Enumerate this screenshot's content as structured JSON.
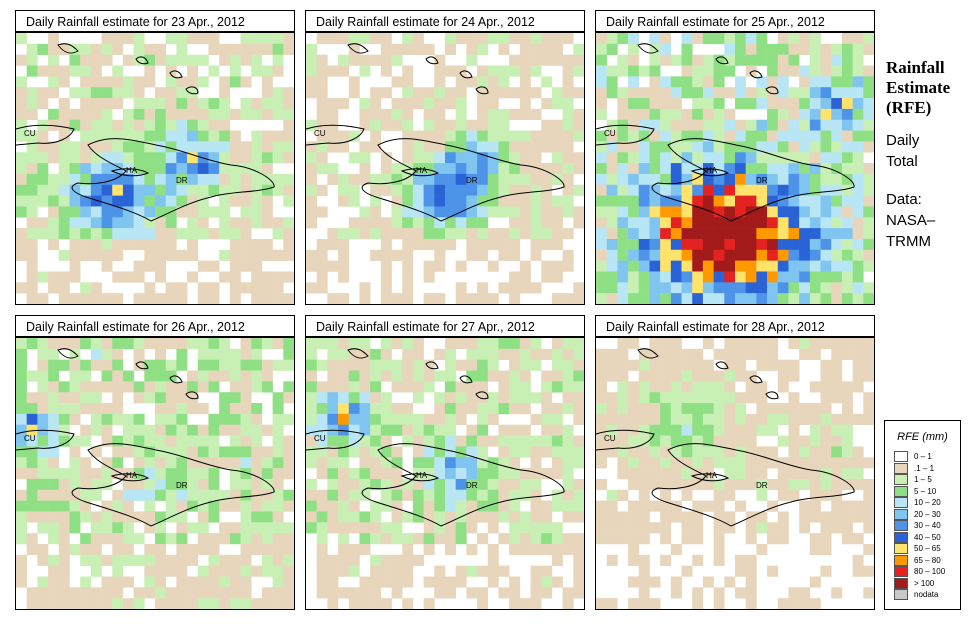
{
  "panels": [
    {
      "title": "Daily Rainfall estimate for  23 Apr., 2012"
    },
    {
      "title": "Daily Rainfall estimate for  24 Apr., 2012"
    },
    {
      "title": "Daily Rainfall estimate for  25 Apr., 2012"
    },
    {
      "title": "Daily Rainfall estimate for  26 Apr., 2012"
    },
    {
      "title": "Daily Rainfall estimate for  27 Apr., 2012"
    },
    {
      "title": "Daily Rainfall estimate for  28 Apr., 2012"
    }
  ],
  "map_labels": {
    "cuba": "CU",
    "haiti": "HA",
    "dominican_republic": "DR"
  },
  "sidebar": {
    "title_line1": "Rainfall",
    "title_line2": "Estimate",
    "title_line3": "(RFE)",
    "total_line1": "Daily",
    "total_line2": "Total",
    "data_line1": "Data:",
    "data_line2": "NASA–",
    "data_line3": "TRMM"
  },
  "legend": {
    "title": "RFE (mm)",
    "items": [
      {
        "label": "0 – 1",
        "color": "#ffffff"
      },
      {
        "label": ".1 – 1",
        "color": "#e8d6bc"
      },
      {
        "label": "1 – 5",
        "color": "#c8f0b4"
      },
      {
        "label": "5 – 10",
        "color": "#8fe085"
      },
      {
        "label": "10 – 20",
        "color": "#b8e6f4"
      },
      {
        "label": "20 – 30",
        "color": "#80c4f0"
      },
      {
        "label": "30 – 40",
        "color": "#4d94e8"
      },
      {
        "label": "40 – 50",
        "color": "#2a63d6"
      },
      {
        "label": "50 – 65",
        "color": "#ffe36a"
      },
      {
        "label": "65 – 80",
        "color": "#ff9900"
      },
      {
        "label": "80 – 100",
        "color": "#e52222"
      },
      {
        "label": "> 100",
        "color": "#a31a1a"
      },
      {
        "label": "nodata",
        "color": "#c8c8c8"
      }
    ]
  },
  "panel_intensity": [
    {
      "base": 1.2,
      "hot_x": 0.34,
      "hot_y": 0.58,
      "hot": 3.2,
      "spread": 0.12,
      "hot2_x": 0.62,
      "hot2_y": 0.44,
      "hot2": 3.4
    },
    {
      "base": 0.9,
      "hot_x": 0.48,
      "hot_y": 0.58,
      "hot": 3.4,
      "spread": 0.1,
      "hot2_x": 0.6,
      "hot2_y": 0.44,
      "hot2": 2.8
    },
    {
      "base": 1.8,
      "hot_x": 0.45,
      "hot_y": 0.72,
      "hot": 6.0,
      "spread": 0.2,
      "hot2_x": 0.85,
      "hot2_y": 0.25,
      "hot2": 3.2
    },
    {
      "base": 1.6,
      "hot_x": 0.03,
      "hot_y": 0.32,
      "hot": 2.8,
      "spread": 0.06,
      "hot2_x": 0.5,
      "hot2_y": 0.45,
      "hot2": 1.0
    },
    {
      "base": 1.3,
      "hot_x": 0.13,
      "hot_y": 0.27,
      "hot": 3.4,
      "spread": 0.07,
      "hot2_x": 0.52,
      "hot2_y": 0.48,
      "hot2": 2.6
    },
    {
      "base": 0.7,
      "hot_x": 0.3,
      "hot_y": 0.3,
      "hot": 1.2,
      "spread": 0.15,
      "hot2_x": 0.8,
      "hot2_y": 0.4,
      "hot2": 0.8
    }
  ]
}
